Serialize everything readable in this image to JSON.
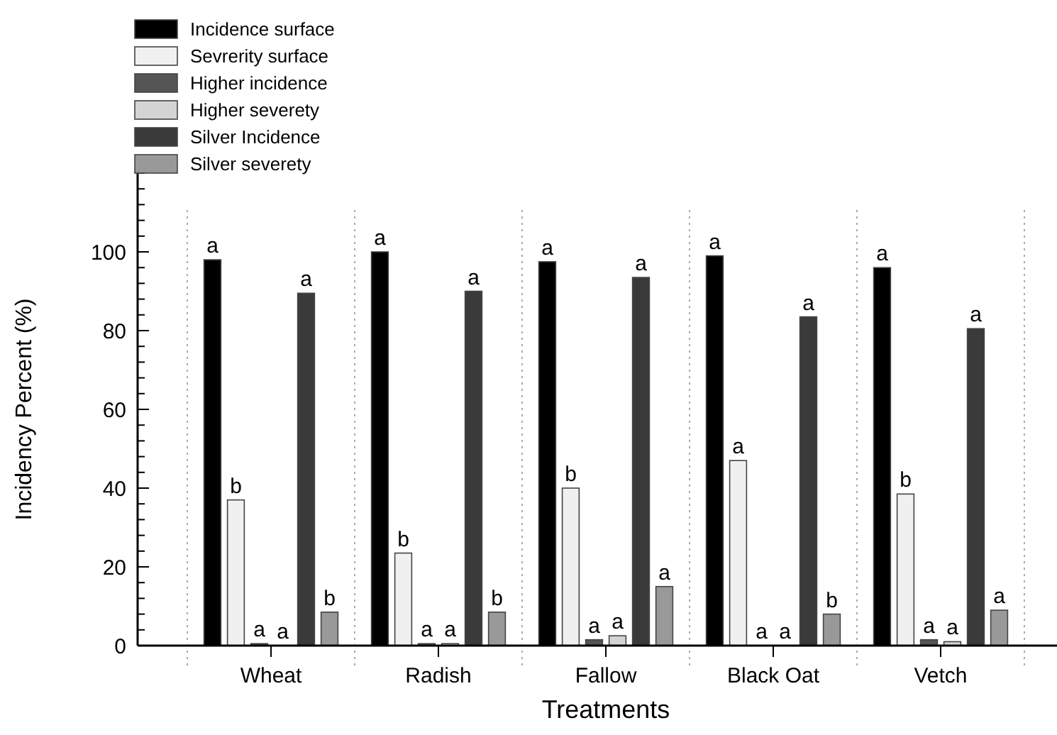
{
  "chart_data": {
    "type": "bar",
    "xlabel": "Treatments",
    "ylabel": "Incidency Percent (%)",
    "categories": [
      "Wheat",
      "Radish",
      "Fallow",
      "Black Oat",
      "Vetch"
    ],
    "series": [
      {
        "name": "Incidence surface",
        "color": "#000000",
        "values": [
          98,
          100,
          97.5,
          99,
          96
        ],
        "value_labels": [
          "a",
          "a",
          "a",
          "a",
          "a"
        ]
      },
      {
        "name": "Sevrerity surface",
        "color": "#f0f0f0",
        "values": [
          37,
          23.5,
          40,
          47,
          38.5
        ],
        "value_labels": [
          "b",
          "b",
          "b",
          "a",
          "b"
        ]
      },
      {
        "name": "Higher incidence",
        "color": "#555555",
        "values": [
          0.5,
          0.5,
          1.5,
          0,
          1.5
        ],
        "value_labels": [
          "a",
          "a",
          "a",
          "a",
          "a"
        ]
      },
      {
        "name": "Higher severety",
        "color": "#d4d4d4",
        "values": [
          0,
          0.5,
          2.5,
          0,
          1
        ],
        "value_labels": [
          "a",
          "a",
          "a",
          "a",
          "a"
        ]
      },
      {
        "name": "Silver Incidence",
        "color": "#3a3a3a",
        "values": [
          89.5,
          90,
          93.5,
          83.5,
          80.5
        ],
        "value_labels": [
          "a",
          "a",
          "a",
          "a",
          "a"
        ]
      },
      {
        "name": "Silver severety",
        "color": "#999999",
        "values": [
          8.5,
          8.5,
          15,
          8,
          9
        ],
        "value_labels": [
          "b",
          "b",
          "a",
          "b",
          "a"
        ]
      }
    ],
    "ylim": [
      0,
      120
    ],
    "yticks": [
      0,
      {
        "value": 4,
        "label": null
      },
      {
        "value": 8,
        "label": null
      },
      {
        "value": 12,
        "label": null
      },
      {
        "value": 16,
        "label": null
      },
      20,
      {
        "value": 24,
        "label": null
      },
      {
        "value": 28,
        "label": null
      },
      {
        "value": 32,
        "label": null
      },
      {
        "value": 36,
        "label": null
      },
      40,
      {
        "value": 44,
        "label": null
      },
      {
        "value": 48,
        "label": null
      },
      {
        "value": 52,
        "label": null
      },
      {
        "value": 56,
        "label": null
      },
      60,
      {
        "value": 64,
        "label": null
      },
      {
        "value": 68,
        "label": null
      },
      {
        "value": 72,
        "label": null
      },
      {
        "value": 76,
        "label": null
      },
      80,
      {
        "value": 84,
        "label": null
      },
      {
        "value": 88,
        "label": null
      },
      {
        "value": 92,
        "label": null
      },
      {
        "value": 96,
        "label": null
      },
      100,
      {
        "value": 104,
        "label": null
      },
      {
        "value": 108,
        "label": null
      },
      {
        "value": 112,
        "label": null
      },
      {
        "value": 116,
        "label": null
      },
      {
        "value": 120,
        "label": null
      }
    ],
    "legend": "top left",
    "grid": false
  }
}
